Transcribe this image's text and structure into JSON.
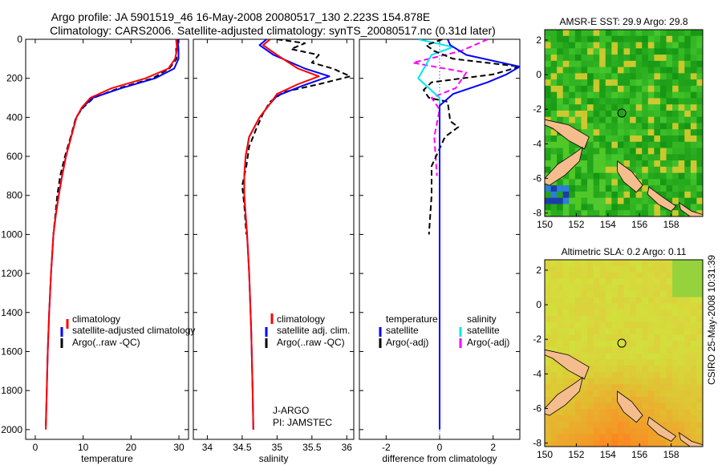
{
  "header": {
    "title_line1": "Argo profile: JA 5901519_46 16-May-2008 20080517_130 2.223S 154.878E",
    "title_line2": "Climatology: CARS2006. Satellite-adjusted climatology: synTS_20080517.nc (0.31d later)"
  },
  "side_text": "CSIRO 25-May-2008 10:31:39",
  "colors": {
    "climatology": "#ff0000",
    "satellite": "#0000ff",
    "argo": "#000000",
    "salinity_satellite": "#00e5ee",
    "salinity_argo": "#ff00ff",
    "coast": "#f5bd8d",
    "marker": "#000000"
  },
  "chart_data": [
    {
      "type": "line",
      "name": "temperature",
      "xlabel": "temperature",
      "ylabel": "",
      "xlim": [
        -2,
        32
      ],
      "ylim": [
        2050,
        0
      ],
      "xticks": [
        0,
        10,
        20,
        30
      ],
      "yticks": [
        0,
        200,
        400,
        600,
        800,
        1000,
        1200,
        1400,
        1600,
        1800,
        2000
      ],
      "legend": [
        "climatology",
        "satellite-adjusted climatology",
        "Argo(..raw -QC)"
      ],
      "series": [
        {
          "name": "climatology",
          "color": "#ff0000",
          "points": [
            [
              29.4,
              0
            ],
            [
              29.6,
              50
            ],
            [
              29.2,
              100
            ],
            [
              27.8,
              150
            ],
            [
              23,
              200
            ],
            [
              16,
              250
            ],
            [
              11.5,
              300
            ],
            [
              9.7,
              350
            ],
            [
              8.6,
              400
            ],
            [
              7.5,
              500
            ],
            [
              6.4,
              600
            ],
            [
              5.6,
              700
            ],
            [
              4.9,
              800
            ],
            [
              4.3,
              900
            ],
            [
              3.8,
              1000
            ],
            [
              3.3,
              1200
            ],
            [
              2.9,
              1400
            ],
            [
              2.6,
              1600
            ],
            [
              2.4,
              1800
            ],
            [
              2.2,
              2000
            ]
          ]
        },
        {
          "name": "satellite-adjusted climatology",
          "color": "#0000ff",
          "points": [
            [
              29.7,
              0
            ],
            [
              29.9,
              50
            ],
            [
              29.9,
              100
            ],
            [
              29.0,
              150
            ],
            [
              25.0,
              200
            ],
            [
              18.0,
              250
            ],
            [
              12.0,
              300
            ],
            [
              9.8,
              350
            ],
            [
              8.6,
              400
            ],
            [
              7.5,
              500
            ],
            [
              6.4,
              600
            ],
            [
              5.6,
              700
            ],
            [
              4.9,
              800
            ],
            [
              4.3,
              900
            ],
            [
              3.8,
              1000
            ],
            [
              3.3,
              1200
            ],
            [
              2.9,
              1400
            ],
            [
              2.6,
              1600
            ],
            [
              2.4,
              1800
            ],
            [
              2.2,
              1980
            ]
          ]
        },
        {
          "name": "Argo(..raw -QC)",
          "color": "#000000",
          "points": [
            [
              29.8,
              0
            ],
            [
              29.4,
              50
            ],
            [
              29.5,
              100
            ],
            [
              28.0,
              150
            ],
            [
              24.5,
              200
            ],
            [
              17.5,
              250
            ],
            [
              12.2,
              300
            ],
            [
              10.0,
              350
            ],
            [
              8.5,
              400
            ],
            [
              7.4,
              500
            ],
            [
              6.2,
              600
            ],
            [
              5.2,
              700
            ],
            [
              4.6,
              800
            ],
            [
              4.2,
              900
            ],
            [
              3.8,
              1000
            ]
          ]
        }
      ]
    },
    {
      "type": "line",
      "name": "salinity",
      "xlabel": "salinity",
      "ylabel": "",
      "xlim": [
        33.8,
        36.1
      ],
      "ylim": [
        2050,
        0
      ],
      "xticks": [
        34,
        34.5,
        35,
        35.5,
        36
      ],
      "legend": [
        "climatology",
        "satellite adj. clim.",
        "Argo(..raw -QC)"
      ],
      "annotations": [
        "J-ARGO",
        "PI: JAMSTEC"
      ],
      "series": [
        {
          "name": "climatology",
          "color": "#ff0000",
          "points": [
            [
              34.9,
              0
            ],
            [
              34.8,
              30
            ],
            [
              35.0,
              80
            ],
            [
              35.3,
              150
            ],
            [
              35.6,
              190
            ],
            [
              35.3,
              230
            ],
            [
              35.0,
              280
            ],
            [
              34.9,
              330
            ],
            [
              34.75,
              400
            ],
            [
              34.6,
              500
            ],
            [
              34.55,
              600
            ],
            [
              34.53,
              700
            ],
            [
              34.53,
              800
            ],
            [
              34.55,
              900
            ],
            [
              34.57,
              1000
            ],
            [
              34.6,
              1200
            ],
            [
              34.63,
              1500
            ],
            [
              34.65,
              1800
            ],
            [
              34.66,
              2000
            ]
          ]
        },
        {
          "name": "satellite adj. clim.",
          "color": "#0000ff",
          "points": [
            [
              34.85,
              0
            ],
            [
              34.75,
              30
            ],
            [
              34.95,
              80
            ],
            [
              35.4,
              150
            ],
            [
              35.75,
              190
            ],
            [
              35.35,
              240
            ],
            [
              35.0,
              290
            ],
            [
              34.9,
              330
            ],
            [
              34.75,
              400
            ],
            [
              34.6,
              500
            ],
            [
              34.55,
              600
            ],
            [
              34.53,
              700
            ],
            [
              34.53,
              800
            ],
            [
              34.55,
              900
            ],
            [
              34.57,
              1000
            ],
            [
              34.6,
              1200
            ],
            [
              34.63,
              1500
            ],
            [
              34.65,
              1800
            ],
            [
              34.66,
              2000
            ]
          ]
        },
        {
          "name": "Argo(..raw -QC)",
          "color": "#000000",
          "points": [
            [
              35.0,
              0
            ],
            [
              35.4,
              20
            ],
            [
              35.2,
              50
            ],
            [
              35.6,
              80
            ],
            [
              35.5,
              120
            ],
            [
              35.8,
              150
            ],
            [
              36.05,
              190
            ],
            [
              35.6,
              230
            ],
            [
              35.1,
              270
            ],
            [
              34.9,
              320
            ],
            [
              34.8,
              380
            ],
            [
              34.7,
              460
            ],
            [
              34.6,
              550
            ],
            [
              34.56,
              650
            ],
            [
              34.5,
              750
            ],
            [
              34.53,
              850
            ],
            [
              34.56,
              1000
            ]
          ]
        }
      ]
    },
    {
      "type": "line",
      "name": "difference",
      "xlabel": "difference from climatology",
      "ylabel": "",
      "xlim": [
        -3.0,
        3.0
      ],
      "ylim": [
        2050,
        0
      ],
      "xticks": [
        -2,
        0,
        2
      ],
      "legend": [
        "temperature",
        "satellite",
        "Argo(-adj)",
        "salinity",
        "satellite",
        "Argo(-adj)"
      ],
      "series": [
        {
          "name": "temperature satellite",
          "color": "#0000ff",
          "points": [
            [
              0.3,
              0
            ],
            [
              0.4,
              30
            ],
            [
              1.0,
              80
            ],
            [
              3.0,
              140
            ],
            [
              2.5,
              180
            ],
            [
              1.8,
              220
            ],
            [
              0.5,
              280
            ],
            [
              0,
              340
            ],
            [
              0,
              2000
            ]
          ]
        },
        {
          "name": "temperature Argo(-adj)",
          "color": "#000000",
          "points": [
            [
              0.1,
              0
            ],
            [
              -0.5,
              30
            ],
            [
              -0.2,
              60
            ],
            [
              0.5,
              100
            ],
            [
              3.0,
              140
            ],
            [
              2.0,
              180
            ],
            [
              -0.3,
              220
            ],
            [
              -0.6,
              260
            ],
            [
              -0.4,
              300
            ],
            [
              0.3,
              320
            ],
            [
              0.4,
              420
            ],
            [
              0.7,
              450
            ],
            [
              0.2,
              500
            ],
            [
              -0.3,
              650
            ],
            [
              -0.3,
              800
            ],
            [
              -0.4,
              1000
            ]
          ]
        },
        {
          "name": "salinity satellite",
          "color": "#00e5ee",
          "points": [
            [
              -0.8,
              0
            ],
            [
              0.5,
              40
            ],
            [
              -0.3,
              80
            ],
            [
              -0.8,
              200
            ],
            [
              0,
              300
            ],
            [
              0,
              2000
            ]
          ]
        },
        {
          "name": "salinity Argo(-adj)",
          "color": "#ff00ff",
          "points": [
            [
              1.8,
              0
            ],
            [
              0.8,
              60
            ],
            [
              -1.0,
              120
            ],
            [
              1.0,
              170
            ],
            [
              0.6,
              250
            ],
            [
              -0.3,
              300
            ],
            [
              0,
              360
            ],
            [
              -0.2,
              500
            ],
            [
              -0.1,
              700
            ]
          ]
        }
      ]
    },
    {
      "type": "heatmap",
      "title": "AMSR-E SST: 29.9 Argo: 29.8",
      "xlim": [
        150,
        160
      ],
      "ylim": [
        -8.2,
        2.6
      ],
      "xticks": [
        150,
        152,
        154,
        156,
        158
      ],
      "yticks": [
        -8,
        -6,
        -4,
        -2,
        0,
        2
      ],
      "marker": {
        "lon": 154.878,
        "lat": -2.223
      }
    },
    {
      "type": "heatmap",
      "title": "Altimetric SLA: 0.2 Argo: 0.11",
      "xlim": [
        150,
        160
      ],
      "ylim": [
        -8.2,
        2.6
      ],
      "xticks": [
        150,
        152,
        154,
        156,
        158
      ],
      "yticks": [
        -8,
        -6,
        -4,
        -2,
        0,
        2
      ],
      "marker": {
        "lon": 154.878,
        "lat": -2.223
      }
    }
  ]
}
